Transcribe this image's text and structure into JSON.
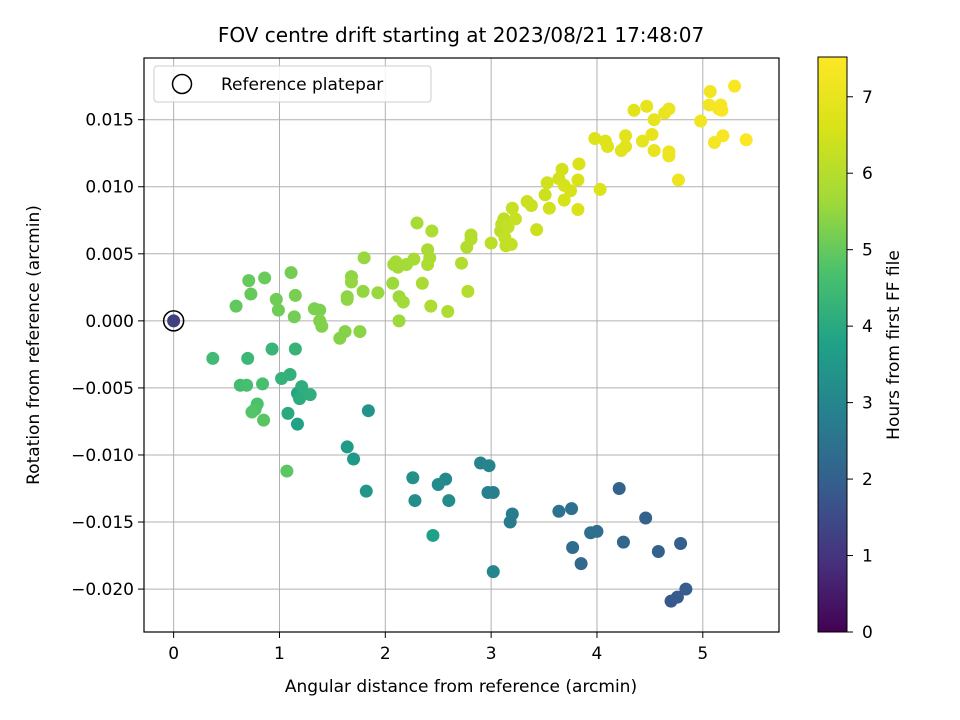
{
  "chart_data": {
    "type": "scatter",
    "title": "FOV centre drift starting at 2023/08/21 17:48:07",
    "xlabel": "Angular distance from reference (arcmin)",
    "ylabel": "Rotation from reference (arcmin)",
    "xlim": [
      -0.28,
      5.72
    ],
    "ylim": [
      -0.0232,
      0.0196
    ],
    "xticks": [
      0,
      1,
      2,
      3,
      4,
      5
    ],
    "xtick_labels": [
      "0",
      "1",
      "2",
      "3",
      "4",
      "5"
    ],
    "yticks": [
      -0.02,
      -0.015,
      -0.01,
      -0.005,
      0.0,
      0.005,
      0.01,
      0.015
    ],
    "ytick_labels": [
      "−0.020",
      "−0.015",
      "−0.010",
      "−0.005",
      "0.000",
      "0.005",
      "0.010",
      "0.015"
    ],
    "grid": true,
    "legend": {
      "location": "upper-left",
      "entries": [
        "Reference platepar"
      ]
    },
    "colorbar": {
      "label": "Hours from first FF file",
      "colormap": "viridis",
      "range": [
        0,
        7.52
      ],
      "ticks": [
        0,
        1,
        2,
        3,
        4,
        5,
        6,
        7
      ],
      "tick_labels": [
        "0",
        "1",
        "2",
        "3",
        "4",
        "5",
        "6",
        "7"
      ]
    },
    "reference_point": {
      "x": 0,
      "y": 0
    },
    "series": [
      {
        "points": [
          {
            "x": 0.0,
            "y": 0.0,
            "c": 1.2
          },
          {
            "x": 4.7,
            "y": -0.0209,
            "c": 1.8
          },
          {
            "x": 4.76,
            "y": -0.0206,
            "c": 1.85
          },
          {
            "x": 4.84,
            "y": -0.02,
            "c": 1.9
          },
          {
            "x": 4.79,
            "y": -0.0166,
            "c": 1.95
          },
          {
            "x": 4.58,
            "y": -0.0172,
            "c": 2.0
          },
          {
            "x": 4.46,
            "y": -0.0147,
            "c": 2.05
          },
          {
            "x": 4.21,
            "y": -0.0125,
            "c": 2.05
          },
          {
            "x": 4.25,
            "y": -0.0165,
            "c": 2.15
          },
          {
            "x": 3.85,
            "y": -0.0181,
            "c": 2.2
          },
          {
            "x": 3.77,
            "y": -0.0169,
            "c": 2.3
          },
          {
            "x": 3.94,
            "y": -0.0158,
            "c": 2.35
          },
          {
            "x": 4.0,
            "y": -0.0157,
            "c": 2.4
          },
          {
            "x": 3.76,
            "y": -0.014,
            "c": 2.45
          },
          {
            "x": 3.64,
            "y": -0.0142,
            "c": 2.5
          },
          {
            "x": 3.18,
            "y": -0.015,
            "c": 2.7
          },
          {
            "x": 3.2,
            "y": -0.0144,
            "c": 2.75
          },
          {
            "x": 3.02,
            "y": -0.0128,
            "c": 2.8
          },
          {
            "x": 2.97,
            "y": -0.0128,
            "c": 2.85
          },
          {
            "x": 2.9,
            "y": -0.0106,
            "c": 2.9
          },
          {
            "x": 2.98,
            "y": -0.0108,
            "c": 2.95
          },
          {
            "x": 3.02,
            "y": -0.0187,
            "c": 3.0
          },
          {
            "x": 2.57,
            "y": -0.0118,
            "c": 3.1
          },
          {
            "x": 2.5,
            "y": -0.0122,
            "c": 3.15
          },
          {
            "x": 2.6,
            "y": -0.0134,
            "c": 3.2
          },
          {
            "x": 2.28,
            "y": -0.0134,
            "c": 3.25
          },
          {
            "x": 2.26,
            "y": -0.0117,
            "c": 3.3
          },
          {
            "x": 1.84,
            "y": -0.0067,
            "c": 3.4
          },
          {
            "x": 1.82,
            "y": -0.0127,
            "c": 3.45
          },
          {
            "x": 1.7,
            "y": -0.0103,
            "c": 3.55
          },
          {
            "x": 1.64,
            "y": -0.0094,
            "c": 3.6
          },
          {
            "x": 2.45,
            "y": -0.016,
            "c": 3.75
          },
          {
            "x": 1.17,
            "y": -0.0077,
            "c": 3.8
          },
          {
            "x": 1.17,
            "y": -0.0054,
            "c": 3.85
          },
          {
            "x": 1.08,
            "y": -0.0069,
            "c": 4.0
          },
          {
            "x": 1.19,
            "y": -0.0058,
            "c": 4.05
          },
          {
            "x": 1.21,
            "y": -0.0049,
            "c": 4.1
          },
          {
            "x": 1.29,
            "y": -0.0055,
            "c": 4.15
          },
          {
            "x": 1.1,
            "y": -0.004,
            "c": 4.2
          },
          {
            "x": 1.02,
            "y": -0.0043,
            "c": 4.25
          },
          {
            "x": 1.15,
            "y": -0.0021,
            "c": 4.3
          },
          {
            "x": 0.93,
            "y": -0.0021,
            "c": 4.35
          },
          {
            "x": 0.7,
            "y": -0.0028,
            "c": 4.4
          },
          {
            "x": 0.37,
            "y": -0.0028,
            "c": 4.5
          },
          {
            "x": 0.63,
            "y": -0.0048,
            "c": 4.55
          },
          {
            "x": 0.69,
            "y": -0.0048,
            "c": 4.6
          },
          {
            "x": 0.84,
            "y": -0.0047,
            "c": 4.65
          },
          {
            "x": 0.79,
            "y": -0.0062,
            "c": 4.7
          },
          {
            "x": 0.77,
            "y": -0.0066,
            "c": 4.75
          },
          {
            "x": 0.74,
            "y": -0.0068,
            "c": 4.8
          },
          {
            "x": 0.85,
            "y": -0.0074,
            "c": 4.85
          },
          {
            "x": 1.07,
            "y": -0.0112,
            "c": 4.9
          },
          {
            "x": 0.59,
            "y": 0.0011,
            "c": 4.95
          },
          {
            "x": 0.73,
            "y": 0.002,
            "c": 5.0
          },
          {
            "x": 0.71,
            "y": 0.003,
            "c": 5.0
          },
          {
            "x": 0.86,
            "y": 0.0032,
            "c": 5.05
          },
          {
            "x": 0.97,
            "y": 0.0016,
            "c": 5.1
          },
          {
            "x": 0.99,
            "y": 0.0008,
            "c": 5.1
          },
          {
            "x": 1.14,
            "y": 0.0003,
            "c": 5.15
          },
          {
            "x": 1.11,
            "y": 0.0036,
            "c": 5.15
          },
          {
            "x": 1.15,
            "y": 0.0019,
            "c": 5.2
          },
          {
            "x": 1.33,
            "y": 0.0009,
            "c": 5.25
          },
          {
            "x": 1.38,
            "y": 0.0008,
            "c": 5.25
          },
          {
            "x": 1.38,
            "y": 0.0,
            "c": 5.3
          },
          {
            "x": 1.4,
            "y": -0.0004,
            "c": 5.3
          },
          {
            "x": 1.57,
            "y": -0.0013,
            "c": 5.35
          },
          {
            "x": 1.62,
            "y": -0.0008,
            "c": 5.35
          },
          {
            "x": 1.76,
            "y": -0.0008,
            "c": 5.4
          },
          {
            "x": 1.64,
            "y": 0.0018,
            "c": 5.4
          },
          {
            "x": 1.64,
            "y": 0.0016,
            "c": 5.45
          },
          {
            "x": 1.68,
            "y": 0.0033,
            "c": 5.45
          },
          {
            "x": 1.68,
            "y": 0.0029,
            "c": 5.5
          },
          {
            "x": 1.79,
            "y": 0.0022,
            "c": 5.5
          },
          {
            "x": 1.8,
            "y": 0.0047,
            "c": 5.55
          },
          {
            "x": 1.93,
            "y": 0.0021,
            "c": 5.55
          },
          {
            "x": 2.07,
            "y": 0.0028,
            "c": 5.6
          },
          {
            "x": 2.13,
            "y": 0.0,
            "c": 5.6
          },
          {
            "x": 2.13,
            "y": 0.0018,
            "c": 5.6
          },
          {
            "x": 2.17,
            "y": 0.0014,
            "c": 5.65
          },
          {
            "x": 2.12,
            "y": 0.004,
            "c": 5.65
          },
          {
            "x": 2.08,
            "y": 0.0042,
            "c": 5.7
          },
          {
            "x": 2.1,
            "y": 0.0044,
            "c": 5.7
          },
          {
            "x": 2.2,
            "y": 0.0042,
            "c": 5.7
          },
          {
            "x": 2.27,
            "y": 0.0046,
            "c": 5.75
          },
          {
            "x": 2.3,
            "y": 0.0073,
            "c": 5.75
          },
          {
            "x": 2.35,
            "y": 0.0028,
            "c": 5.8
          },
          {
            "x": 2.4,
            "y": 0.0053,
            "c": 5.8
          },
          {
            "x": 2.42,
            "y": 0.0047,
            "c": 5.8
          },
          {
            "x": 2.4,
            "y": 0.0042,
            "c": 5.85
          },
          {
            "x": 2.44,
            "y": 0.0067,
            "c": 5.85
          },
          {
            "x": 2.43,
            "y": 0.0011,
            "c": 5.9
          },
          {
            "x": 2.59,
            "y": 0.0007,
            "c": 5.9
          },
          {
            "x": 2.72,
            "y": 0.0043,
            "c": 5.95
          },
          {
            "x": 2.77,
            "y": 0.0055,
            "c": 5.95
          },
          {
            "x": 2.81,
            "y": 0.0064,
            "c": 6.0
          },
          {
            "x": 2.81,
            "y": 0.0061,
            "c": 6.0
          },
          {
            "x": 2.78,
            "y": 0.0022,
            "c": 6.0
          },
          {
            "x": 3.0,
            "y": 0.0058,
            "c": 6.1
          },
          {
            "x": 3.09,
            "y": 0.0067,
            "c": 6.1
          },
          {
            "x": 3.1,
            "y": 0.0072,
            "c": 6.15
          },
          {
            "x": 3.12,
            "y": 0.0076,
            "c": 6.15
          },
          {
            "x": 3.13,
            "y": 0.0062,
            "c": 6.2
          },
          {
            "x": 3.14,
            "y": 0.0056,
            "c": 6.2
          },
          {
            "x": 3.19,
            "y": 0.0057,
            "c": 6.25
          },
          {
            "x": 3.16,
            "y": 0.007,
            "c": 6.25
          },
          {
            "x": 3.2,
            "y": 0.0084,
            "c": 6.3
          },
          {
            "x": 3.23,
            "y": 0.0076,
            "c": 6.3
          },
          {
            "x": 3.34,
            "y": 0.0089,
            "c": 6.35
          },
          {
            "x": 3.38,
            "y": 0.0086,
            "c": 6.35
          },
          {
            "x": 3.43,
            "y": 0.0068,
            "c": 6.4
          },
          {
            "x": 3.51,
            "y": 0.0094,
            "c": 6.4
          },
          {
            "x": 3.53,
            "y": 0.0103,
            "c": 6.45
          },
          {
            "x": 3.55,
            "y": 0.0084,
            "c": 6.45
          },
          {
            "x": 3.64,
            "y": 0.0106,
            "c": 6.5
          },
          {
            "x": 3.67,
            "y": 0.0113,
            "c": 6.5
          },
          {
            "x": 3.69,
            "y": 0.0101,
            "c": 6.55
          },
          {
            "x": 3.69,
            "y": 0.009,
            "c": 6.55
          },
          {
            "x": 3.75,
            "y": 0.0097,
            "c": 6.6
          },
          {
            "x": 3.82,
            "y": 0.0105,
            "c": 6.6
          },
          {
            "x": 3.83,
            "y": 0.0117,
            "c": 6.65
          },
          {
            "x": 3.82,
            "y": 0.0083,
            "c": 6.65
          },
          {
            "x": 3.98,
            "y": 0.0136,
            "c": 6.7
          },
          {
            "x": 4.03,
            "y": 0.0098,
            "c": 6.7
          },
          {
            "x": 4.08,
            "y": 0.0134,
            "c": 6.75
          },
          {
            "x": 4.1,
            "y": 0.013,
            "c": 6.75
          },
          {
            "x": 4.23,
            "y": 0.0127,
            "c": 6.8
          },
          {
            "x": 4.27,
            "y": 0.013,
            "c": 6.8
          },
          {
            "x": 4.27,
            "y": 0.0138,
            "c": 6.85
          },
          {
            "x": 4.35,
            "y": 0.0157,
            "c": 6.85
          },
          {
            "x": 4.43,
            "y": 0.0134,
            "c": 6.9
          },
          {
            "x": 4.47,
            "y": 0.016,
            "c": 6.9
          },
          {
            "x": 4.52,
            "y": 0.0139,
            "c": 6.95
          },
          {
            "x": 4.54,
            "y": 0.015,
            "c": 6.95
          },
          {
            "x": 4.54,
            "y": 0.0127,
            "c": 7.0
          },
          {
            "x": 4.64,
            "y": 0.0155,
            "c": 7.0
          },
          {
            "x": 4.68,
            "y": 0.0158,
            "c": 7.05
          },
          {
            "x": 4.68,
            "y": 0.0126,
            "c": 7.05
          },
          {
            "x": 4.68,
            "y": 0.0123,
            "c": 7.1
          },
          {
            "x": 4.77,
            "y": 0.0105,
            "c": 7.15
          },
          {
            "x": 4.98,
            "y": 0.0149,
            "c": 7.2
          },
          {
            "x": 5.06,
            "y": 0.0161,
            "c": 7.25
          },
          {
            "x": 5.07,
            "y": 0.0171,
            "c": 7.25
          },
          {
            "x": 5.11,
            "y": 0.0133,
            "c": 7.3
          },
          {
            "x": 5.15,
            "y": 0.0158,
            "c": 7.3
          },
          {
            "x": 5.17,
            "y": 0.0161,
            "c": 7.35
          },
          {
            "x": 5.18,
            "y": 0.0157,
            "c": 7.35
          },
          {
            "x": 5.19,
            "y": 0.0138,
            "c": 7.4
          },
          {
            "x": 5.3,
            "y": 0.0175,
            "c": 7.45
          },
          {
            "x": 5.41,
            "y": 0.0135,
            "c": 7.5
          }
        ]
      }
    ]
  }
}
